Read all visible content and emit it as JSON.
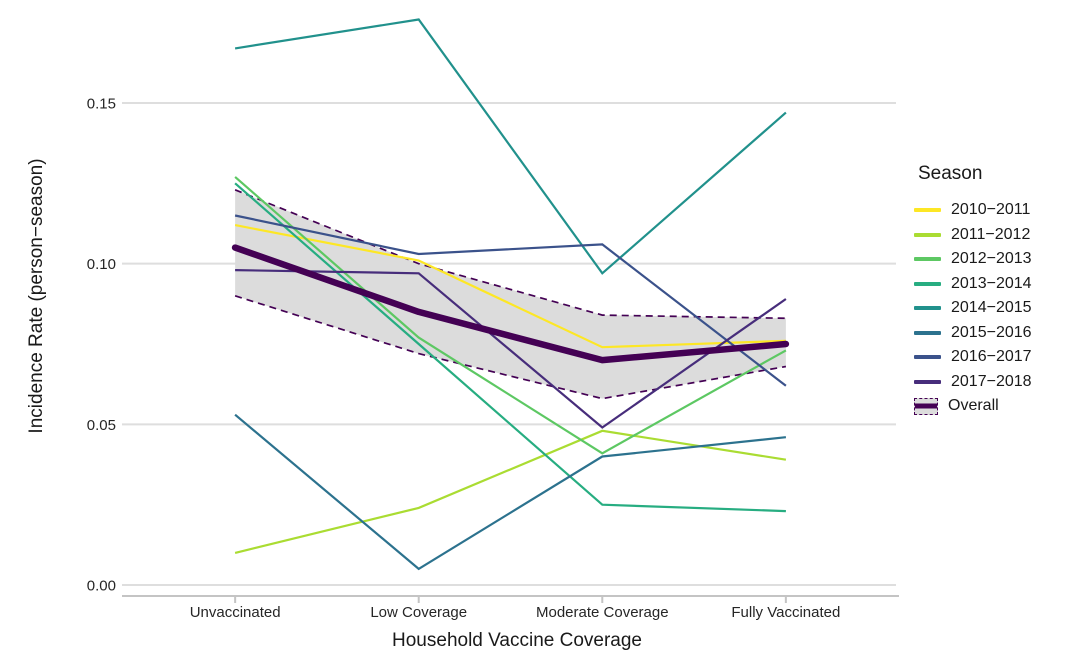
{
  "chart_data": {
    "type": "line",
    "title": "",
    "xlabel": "Household Vaccine Coverage",
    "ylabel": "Incidence Rate (person−season)",
    "categories": [
      "Unvaccinated",
      "Low Coverage",
      "Moderate Coverage",
      "Fully Vaccinated"
    ],
    "y_ticks": [
      0.0,
      0.05,
      0.1,
      0.15
    ],
    "y_tick_labels": [
      "0.00",
      "0.05",
      "0.10",
      "0.15"
    ],
    "ylim": [
      0,
      0.18
    ],
    "grid": "horizontal-only",
    "legend_position": "right",
    "legend_title": "Season",
    "series": [
      {
        "name": "2010−2011",
        "color": "#FDE725",
        "values": [
          0.112,
          0.101,
          0.074,
          0.076
        ]
      },
      {
        "name": "2011−2012",
        "color": "#AADC32",
        "values": [
          0.01,
          0.024,
          0.048,
          0.039
        ]
      },
      {
        "name": "2012−2013",
        "color": "#5DC863",
        "values": [
          0.127,
          0.077,
          0.041,
          0.073
        ]
      },
      {
        "name": "2013−2014",
        "color": "#27AD81",
        "values": [
          0.125,
          0.075,
          0.025,
          0.023
        ]
      },
      {
        "name": "2014−2015",
        "color": "#21918C",
        "values": [
          0.167,
          0.176,
          0.097,
          0.147
        ]
      },
      {
        "name": "2015−2016",
        "color": "#2C728E",
        "values": [
          0.053,
          0.005,
          0.04,
          0.046
        ]
      },
      {
        "name": "2016−2017",
        "color": "#3B528B",
        "values": [
          0.115,
          0.103,
          0.106,
          0.062
        ]
      },
      {
        "name": "2017−2018",
        "color": "#472D7B",
        "values": [
          0.098,
          0.097,
          0.049,
          0.089
        ]
      }
    ],
    "overall": {
      "name": "Overall",
      "color": "#440154",
      "values": [
        0.105,
        0.085,
        0.07,
        0.075
      ],
      "ribbon_upper": [
        0.123,
        0.1,
        0.084,
        0.083
      ],
      "ribbon_lower": [
        0.09,
        0.072,
        0.058,
        0.068
      ],
      "ribbon_fill": "#DCDCDC"
    },
    "style": {
      "gridline_color": "#DEDEDE",
      "axis_line_color": "#C4C4C4",
      "tick_label_color": "#262626"
    }
  }
}
